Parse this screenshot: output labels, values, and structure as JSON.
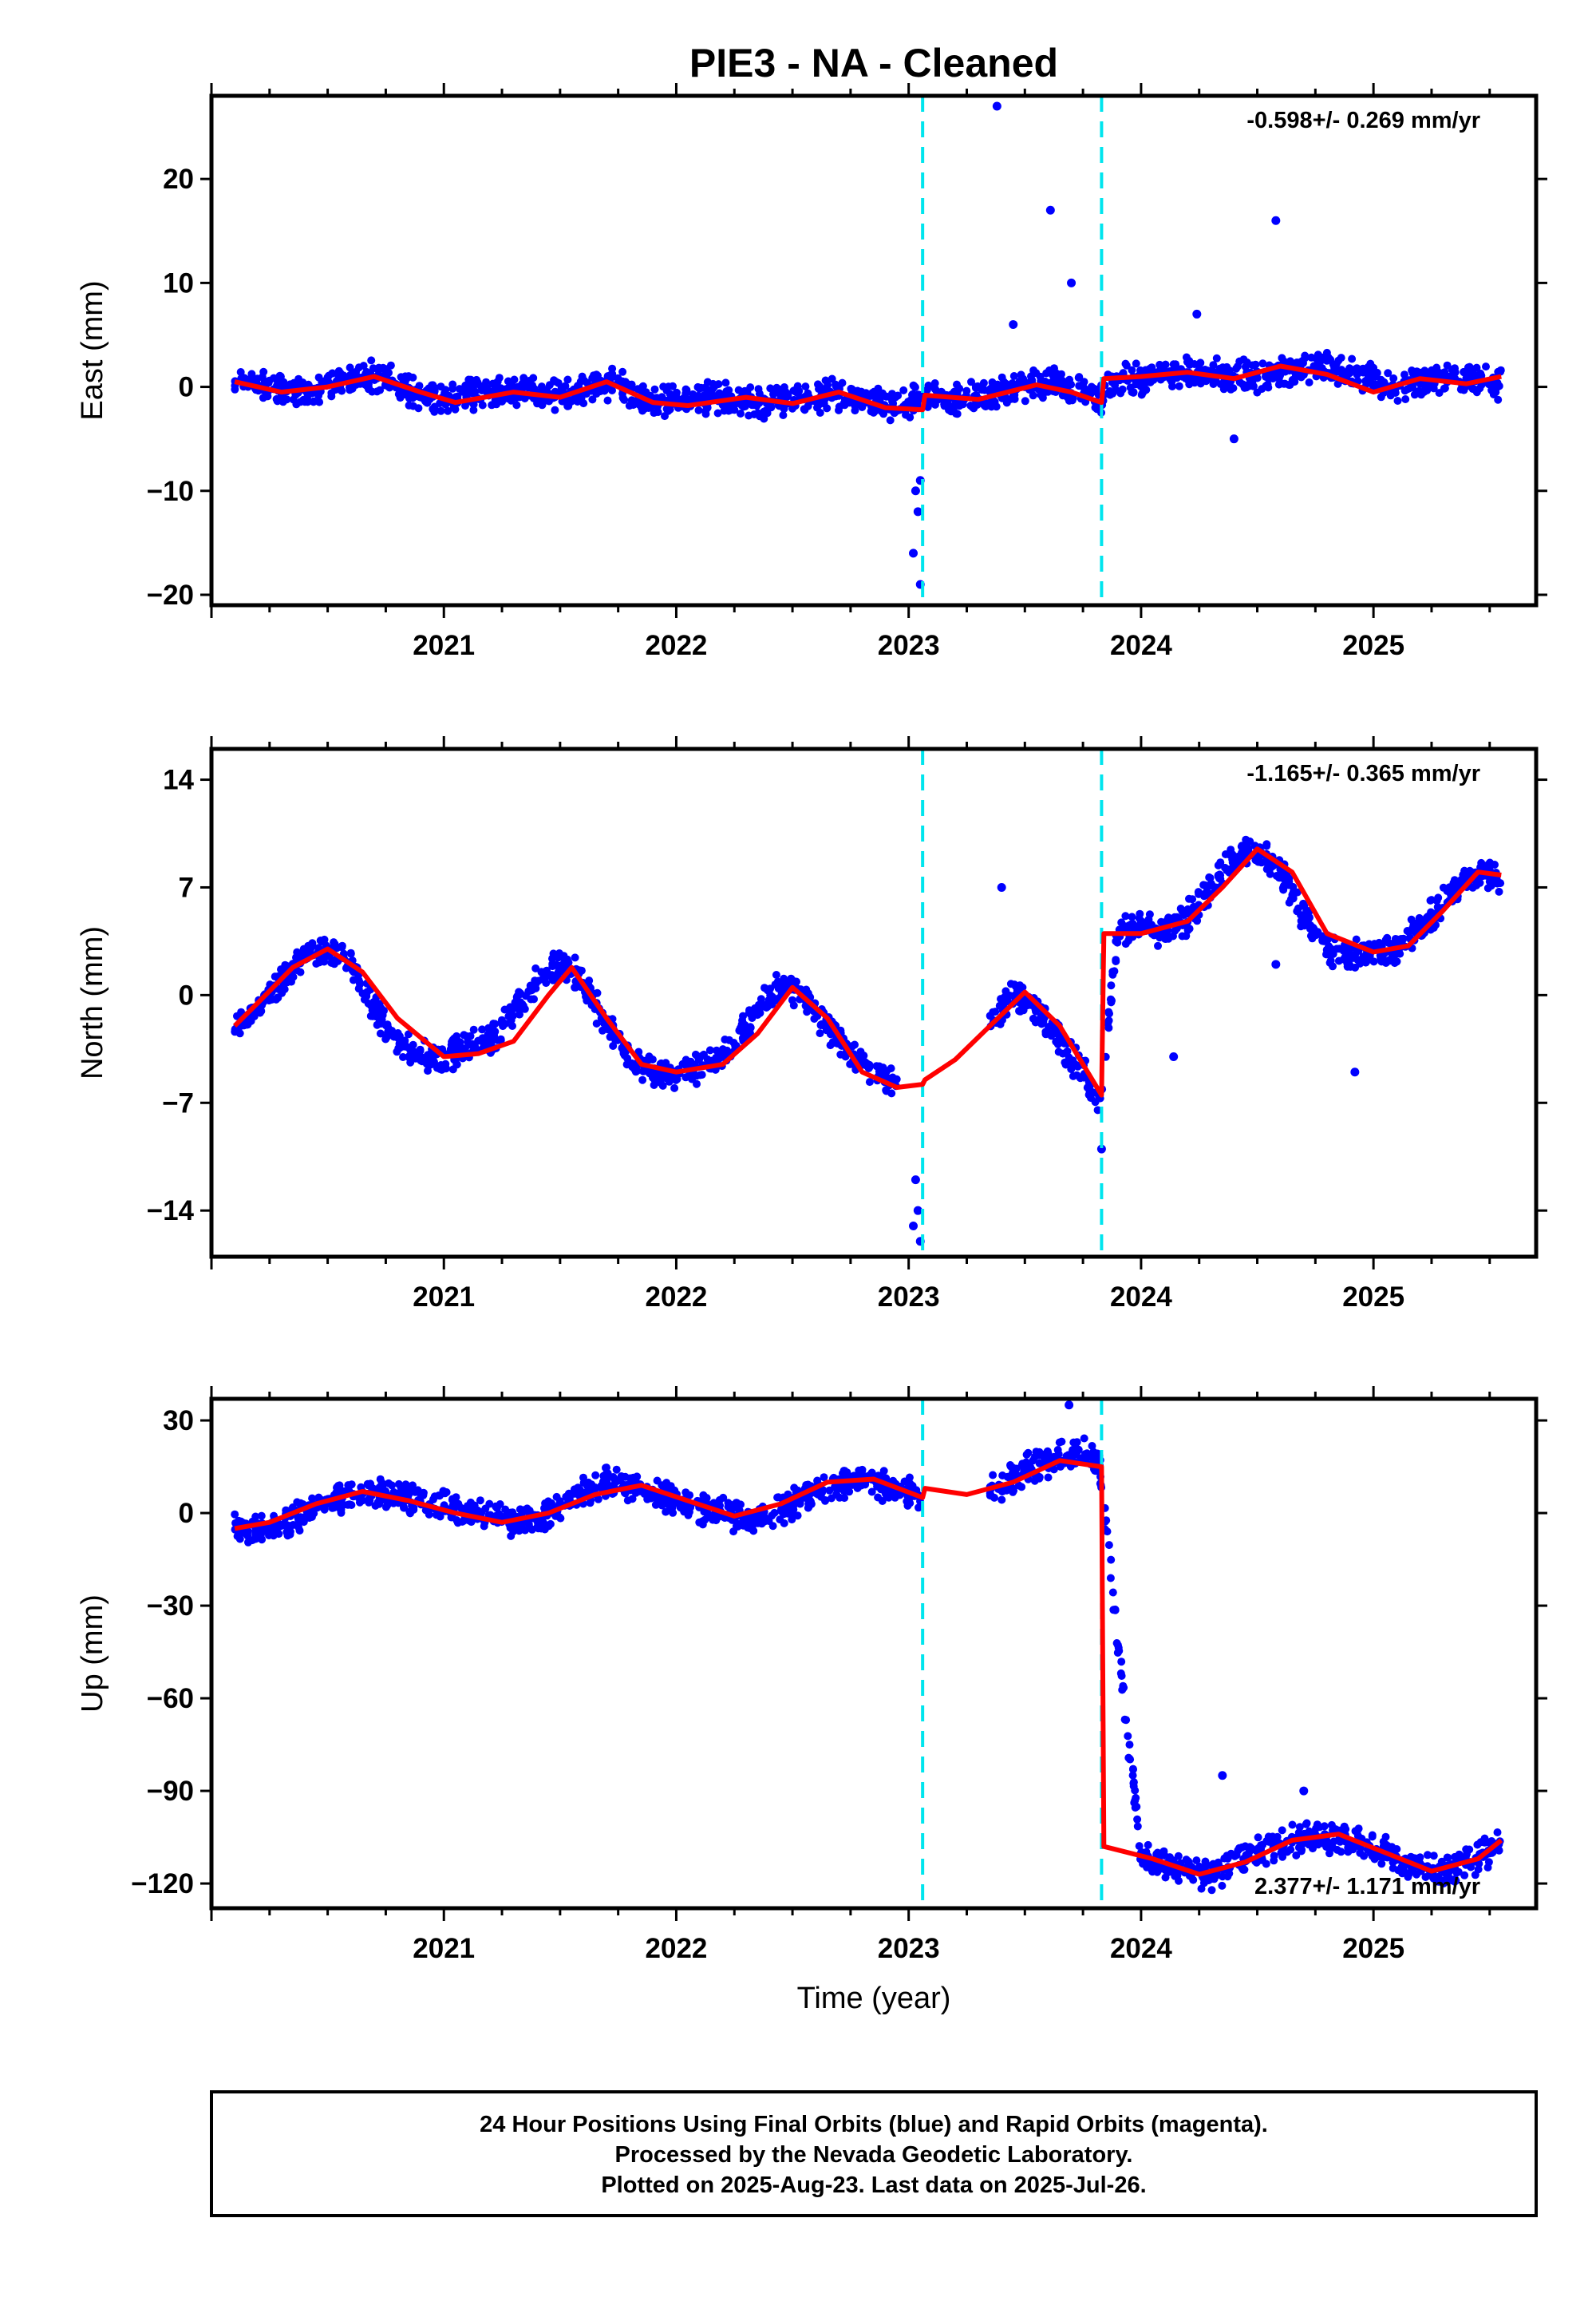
{
  "title": "PIE3  - NA - Cleaned",
  "colors": {
    "dots": "#0000ff",
    "model": "#ff0000",
    "breaks": "#00e5ee",
    "frame": "#000000"
  },
  "x_axis": {
    "label": "Time (year)",
    "ticks": [
      2021,
      2022,
      2023,
      2024,
      2025
    ],
    "tick_labels": [
      "2021",
      "2022",
      "2023",
      "2024",
      "2025"
    ],
    "range": [
      2020.0,
      2025.7
    ]
  },
  "breaks": [
    2023.06,
    2023.83
  ],
  "footer": {
    "line1": "24 Hour Positions Using Final Orbits (blue) and Rapid Orbits (magenta).",
    "line2": "Processed by the Nevada Geodetic Laboratory.",
    "line3": "Plotted on 2025-Aug-23. Last data on 2025-Jul-26."
  },
  "chart_data": [
    {
      "type": "scatter",
      "ylabel": "East (mm)",
      "rate": "-0.598+/- 0.269 mm/yr",
      "ylim": [
        -21,
        28
      ],
      "yticks": [
        20,
        10,
        0,
        -10,
        -20
      ],
      "ytick_labels": [
        "20",
        "10",
        "0",
        "−10",
        "−20"
      ],
      "series": [
        {
          "values_x": [
            2020.1,
            2020.25,
            2020.4,
            2020.55,
            2020.7,
            2020.85,
            2021.0,
            2021.15,
            2021.3,
            2021.45,
            2021.6,
            2021.75,
            2021.9,
            2022.05,
            2022.2,
            2022.35,
            2022.5,
            2022.65,
            2022.8,
            2022.95,
            2023.05,
            2023.3,
            2023.45,
            2023.6,
            2023.75,
            2023.82,
            2023.9,
            2024.05,
            2024.2,
            2024.35,
            2024.5,
            2024.65,
            2024.8,
            2024.95,
            2025.1,
            2025.25,
            2025.4,
            2025.55
          ],
          "values_y": [
            0.5,
            0.0,
            -0.3,
            0.5,
            1.0,
            -0.2,
            -1.3,
            -0.5,
            -0.2,
            -0.8,
            -0.2,
            0.3,
            -1.5,
            -1.0,
            -1.0,
            -1.5,
            -1.3,
            -0.8,
            -1.3,
            -2.0,
            -1.2,
            -1.0,
            -0.3,
            0.5,
            -0.3,
            -1.2,
            0.7,
            0.8,
            1.5,
            1.2,
            1.0,
            1.6,
            2.0,
            1.0,
            0.0,
            0.8,
            0.6,
            0.3
          ]
        }
      ],
      "outliers_x": [
        2023.03,
        2023.04,
        2023.05,
        2023.02,
        2023.05,
        2023.38,
        2023.61,
        2023.7,
        2023.45,
        2024.58,
        2024.24,
        2024.4
      ],
      "outliers_y": [
        -10,
        -12,
        -9,
        -16,
        -19,
        27,
        17,
        10,
        6,
        16,
        7,
        -5
      ],
      "model_x": [
        2020.1,
        2020.3,
        2020.5,
        2020.7,
        2020.9,
        2021.05,
        2021.3,
        2021.5,
        2021.7,
        2021.9,
        2022.05,
        2022.3,
        2022.5,
        2022.7,
        2022.9,
        2023.06,
        2023.07,
        2023.3,
        2023.55,
        2023.7,
        2023.83,
        2023.84,
        2024.0,
        2024.2,
        2024.4,
        2024.6,
        2024.8,
        2025.0,
        2025.2,
        2025.4,
        2025.55
      ],
      "model_y": [
        0.5,
        -0.5,
        0.0,
        1.0,
        -0.5,
        -1.5,
        -0.5,
        -1.0,
        0.5,
        -1.5,
        -1.8,
        -1.0,
        -1.6,
        -0.5,
        -2.0,
        -2.2,
        -0.8,
        -1.2,
        0.2,
        -0.5,
        -1.5,
        0.8,
        1.0,
        1.4,
        0.8,
        2.0,
        1.2,
        -0.5,
        0.8,
        0.3,
        1.0
      ]
    },
    {
      "type": "scatter",
      "ylabel": "North (mm)",
      "rate": "-1.165+/- 0.365 mm/yr",
      "ylim": [
        -17,
        16
      ],
      "yticks": [
        14,
        7,
        0,
        -7,
        -14
      ],
      "ytick_labels": [
        "14",
        "7",
        "0",
        "−7",
        "−14"
      ],
      "series": [
        {
          "values_x": [
            2020.1,
            2020.2,
            2020.3,
            2020.4,
            2020.5,
            2020.6,
            2020.7,
            2020.8,
            2020.9,
            2021.0,
            2021.1,
            2021.2,
            2021.3,
            2021.4,
            2021.5,
            2021.6,
            2021.7,
            2021.8,
            2021.9,
            2022.05,
            2022.15,
            2022.25,
            2022.35,
            2022.45,
            2022.55,
            2022.65,
            2022.75,
            2022.85,
            2022.95,
            2023.35,
            2023.45,
            2023.55,
            2023.65,
            2023.75,
            2023.82,
            2023.9,
            2024.0,
            2024.1,
            2024.2,
            2024.3,
            2024.4,
            2024.5,
            2024.6,
            2024.7,
            2024.8,
            2024.9,
            2025.0,
            2025.1,
            2025.2,
            2025.3,
            2025.4,
            2025.5,
            2025.55
          ],
          "values_y": [
            -2,
            -1,
            1,
            2.5,
            3,
            2,
            -1,
            -3,
            -4,
            -4,
            -3.5,
            -3,
            -1,
            1,
            2,
            1,
            -2,
            -4,
            -5,
            -5,
            -4.5,
            -3,
            -1,
            0.5,
            0,
            -2,
            -4,
            -5,
            -6,
            -2,
            0,
            -1,
            -3,
            -5,
            -7,
            4,
            4.5,
            4,
            5,
            7,
            9,
            9.5,
            8,
            5,
            3,
            2.5,
            2.7,
            3,
            4.5,
            6,
            7.5,
            8,
            7
          ]
        }
      ],
      "outliers_x": [
        2023.03,
        2023.04,
        2023.05,
        2023.02,
        2023.4,
        2023.83,
        2024.14,
        2024.58,
        2024.92
      ],
      "outliers_y": [
        -12,
        -14,
        -16,
        -15,
        7,
        -10,
        -4,
        2,
        -5
      ],
      "model_x": [
        2020.1,
        2020.2,
        2020.35,
        2020.5,
        2020.65,
        2020.8,
        2021.0,
        2021.15,
        2021.3,
        2021.45,
        2021.55,
        2021.7,
        2021.85,
        2022.0,
        2022.2,
        2022.35,
        2022.5,
        2022.65,
        2022.8,
        2022.95,
        2023.06,
        2023.07,
        2023.2,
        2023.35,
        2023.5,
        2023.65,
        2023.83,
        2023.84,
        2024.0,
        2024.2,
        2024.35,
        2024.5,
        2024.65,
        2024.8,
        2025.0,
        2025.15,
        2025.3,
        2025.45,
        2025.55
      ],
      "model_y": [
        -2,
        -0.5,
        1.8,
        3,
        1.5,
        -1.5,
        -4,
        -3.8,
        -3,
        0,
        1.8,
        -1.5,
        -4.5,
        -5,
        -4.5,
        -2.5,
        0.5,
        -1.5,
        -5,
        -6,
        -5.8,
        -5.5,
        -4.2,
        -2,
        0.2,
        -2,
        -6.5,
        4,
        4,
        4.8,
        7,
        9.5,
        8,
        4,
        2.8,
        3.2,
        5.5,
        8,
        7.8
      ]
    },
    {
      "type": "scatter",
      "ylabel": "Up (mm)",
      "rate": "2.377+/- 1.171 mm/yr",
      "ylim": [
        -128,
        37
      ],
      "yticks": [
        30,
        0,
        -30,
        -60,
        -90,
        -120
      ],
      "ytick_labels": [
        "30",
        "0",
        "−30",
        "−60",
        "−90",
        "−120"
      ],
      "series": [
        {
          "values_x": [
            2020.1,
            2020.2,
            2020.35,
            2020.5,
            2020.65,
            2020.8,
            2020.95,
            2021.1,
            2021.25,
            2021.4,
            2021.55,
            2021.7,
            2021.85,
            2022.05,
            2022.2,
            2022.35,
            2022.5,
            2022.65,
            2022.8,
            2022.95,
            2023.05,
            2023.35,
            2023.45,
            2023.55,
            2023.65,
            2023.75,
            2023.82,
            2024.0,
            2024.15,
            2024.3,
            2024.45,
            2024.6,
            2024.75,
            2024.9,
            2025.05,
            2025.2,
            2025.35,
            2025.5,
            2025.55
          ],
          "values_y": [
            -5,
            -6,
            -2,
            3,
            7,
            6,
            3,
            0,
            -2,
            -3,
            5,
            10,
            8,
            3,
            0,
            -2,
            3,
            9,
            11,
            8,
            6,
            7,
            12,
            15,
            18,
            20,
            16,
            -112,
            -115,
            -117,
            -112,
            -107,
            -104,
            -106,
            -110,
            -114,
            -116,
            -110,
            -106
          ]
        }
      ],
      "outliers_x": [
        2023.69,
        2024.35,
        2024.7
      ],
      "outliers_y": [
        35,
        -85,
        -90
      ],
      "model_x": [
        2020.1,
        2020.25,
        2020.45,
        2020.65,
        2020.85,
        2021.05,
        2021.25,
        2021.45,
        2021.65,
        2021.85,
        2022.05,
        2022.25,
        2022.45,
        2022.65,
        2022.85,
        2023.06,
        2023.07,
        2023.25,
        2023.45,
        2023.65,
        2023.83,
        2023.84,
        2024.05,
        2024.25,
        2024.45,
        2024.65,
        2024.85,
        2025.05,
        2025.25,
        2025.45,
        2025.55
      ],
      "model_y": [
        -5,
        -3,
        3,
        7,
        4,
        0,
        -3,
        0,
        6,
        9,
        4,
        -1,
        3,
        10,
        11,
        5,
        8,
        6,
        10,
        17,
        15,
        -108,
        -112,
        -117,
        -113,
        -106,
        -104,
        -110,
        -116,
        -112,
        -106
      ]
    }
  ]
}
